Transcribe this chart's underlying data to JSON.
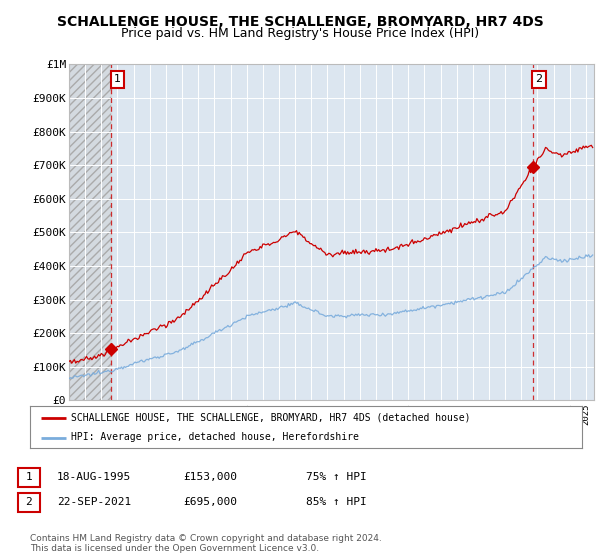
{
  "title": "SCHALLENGE HOUSE, THE SCHALLENGE, BROMYARD, HR7 4DS",
  "subtitle": "Price paid vs. HM Land Registry's House Price Index (HPI)",
  "ylim": [
    0,
    1000000
  ],
  "yticks": [
    0,
    100000,
    200000,
    300000,
    400000,
    500000,
    600000,
    700000,
    800000,
    900000,
    1000000
  ],
  "ytick_labels": [
    "£0",
    "£100K",
    "£200K",
    "£300K",
    "£400K",
    "£500K",
    "£600K",
    "£700K",
    "£800K",
    "£900K",
    "£1M"
  ],
  "xlim_start": 1993.0,
  "xlim_end": 2025.5,
  "background_color": "#ffffff",
  "plot_bg_color": "#dce6f0",
  "grid_color": "#ffffff",
  "red_line_color": "#cc0000",
  "blue_line_color": "#7aacdc",
  "sale1_x": 1995.63,
  "sale1_y": 153000,
  "sale1_label": "1",
  "sale2_x": 2021.72,
  "sale2_y": 695000,
  "sale2_label": "2",
  "legend_label_red": "SCHALLENGE HOUSE, THE SCHALLENGE, BROMYARD, HR7 4DS (detached house)",
  "legend_label_blue": "HPI: Average price, detached house, Herefordshire",
  "table_row1": [
    "1",
    "18-AUG-1995",
    "£153,000",
    "75% ↑ HPI"
  ],
  "table_row2": [
    "2",
    "22-SEP-2021",
    "£695,000",
    "85% ↑ HPI"
  ],
  "footer": "Contains HM Land Registry data © Crown copyright and database right 2024.\nThis data is licensed under the Open Government Licence v3.0.",
  "title_fontsize": 10,
  "subtitle_fontsize": 9,
  "tick_fontsize": 8
}
